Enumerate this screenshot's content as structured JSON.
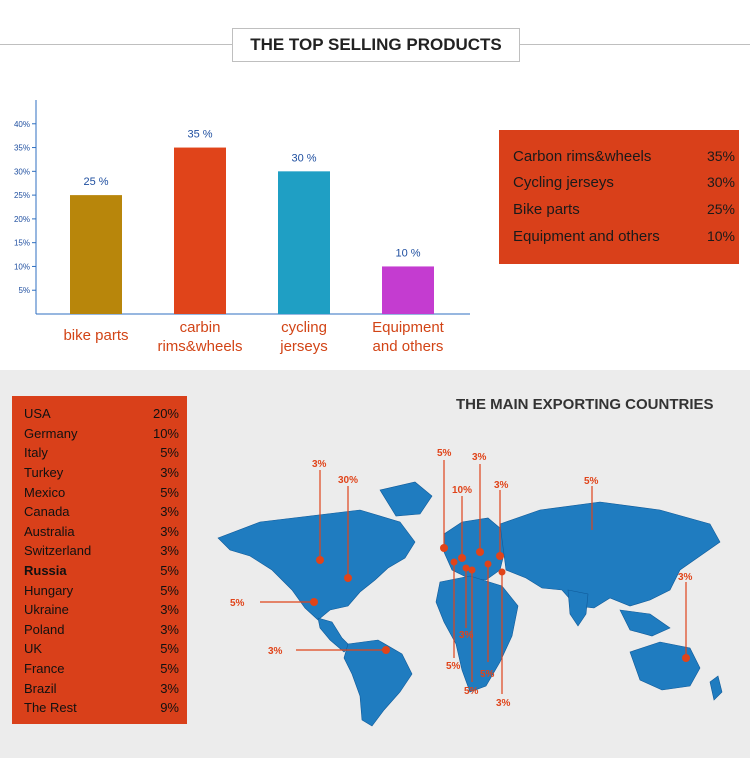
{
  "header": {
    "title": "THE TOP SELLING PRODUCTS"
  },
  "chart_data": {
    "type": "bar",
    "categories": [
      "bike parts",
      "carbin rims&wheels",
      "cycling jerseys",
      "Equipment and others"
    ],
    "category_lines": [
      [
        "bike parts"
      ],
      [
        "carbin",
        "rims&wheels"
      ],
      [
        "cycling",
        "jerseys"
      ],
      [
        "Equipment",
        "and others"
      ]
    ],
    "values": [
      25,
      35,
      30,
      10
    ],
    "data_labels": [
      "25 %",
      "35 %",
      "30 %",
      "10 %"
    ],
    "bar_colors": [
      "#b8860b",
      "#e0441a",
      "#1f9fc4",
      "#c43cd0"
    ],
    "yticks": [
      "5%",
      "10%",
      "15%",
      "20%",
      "25%",
      "30%",
      "35%",
      "40%"
    ],
    "ylim": [
      0,
      45
    ],
    "title": "",
    "xlabel": "",
    "ylabel": ""
  },
  "legend": {
    "items": [
      {
        "label": "Carbon rims&wheels",
        "value": "35%"
      },
      {
        "label": "Cycling jerseys",
        "value": "30%"
      },
      {
        "label": "Bike parts",
        "value": "25%"
      },
      {
        "label": "Equipment and others",
        "value": "10%"
      }
    ]
  },
  "countries": {
    "items": [
      {
        "name": "USA",
        "value": "20%"
      },
      {
        "name": "Germany",
        "value": "10%"
      },
      {
        "name": "Italy",
        "value": "5%"
      },
      {
        "name": "Turkey",
        "value": "3%"
      },
      {
        "name": "Mexico",
        "value": "5%"
      },
      {
        "name": "Canada",
        "value": "3%"
      },
      {
        "name": "Australia",
        "value": "3%"
      },
      {
        "name": "Switzerland",
        "value": "3%"
      },
      {
        "name": "Russia",
        "value": "5%"
      },
      {
        "name": "Hungary",
        "value": "5%"
      },
      {
        "name": "Ukraine",
        "value": "3%"
      },
      {
        "name": "Poland",
        "value": "3%"
      },
      {
        "name": "UK",
        "value": "5%"
      },
      {
        "name": "France",
        "value": "5%"
      },
      {
        "name": "Brazil",
        "value": "3%"
      },
      {
        "name": "The Rest",
        "value": "9%"
      }
    ]
  },
  "map": {
    "title": "THE MAIN EXPORTING COUNTRIES",
    "markers": [
      "3%",
      "30%",
      "5%",
      "3%",
      "5%",
      "3%",
      "10%",
      "3%",
      "5%",
      "3%",
      "3%",
      "5%",
      "5%",
      "5%",
      "3%"
    ]
  },
  "colors": {
    "accent": "#d9401a",
    "map_blue": "#1f7cc0",
    "axis": "#2f6fc0"
  }
}
